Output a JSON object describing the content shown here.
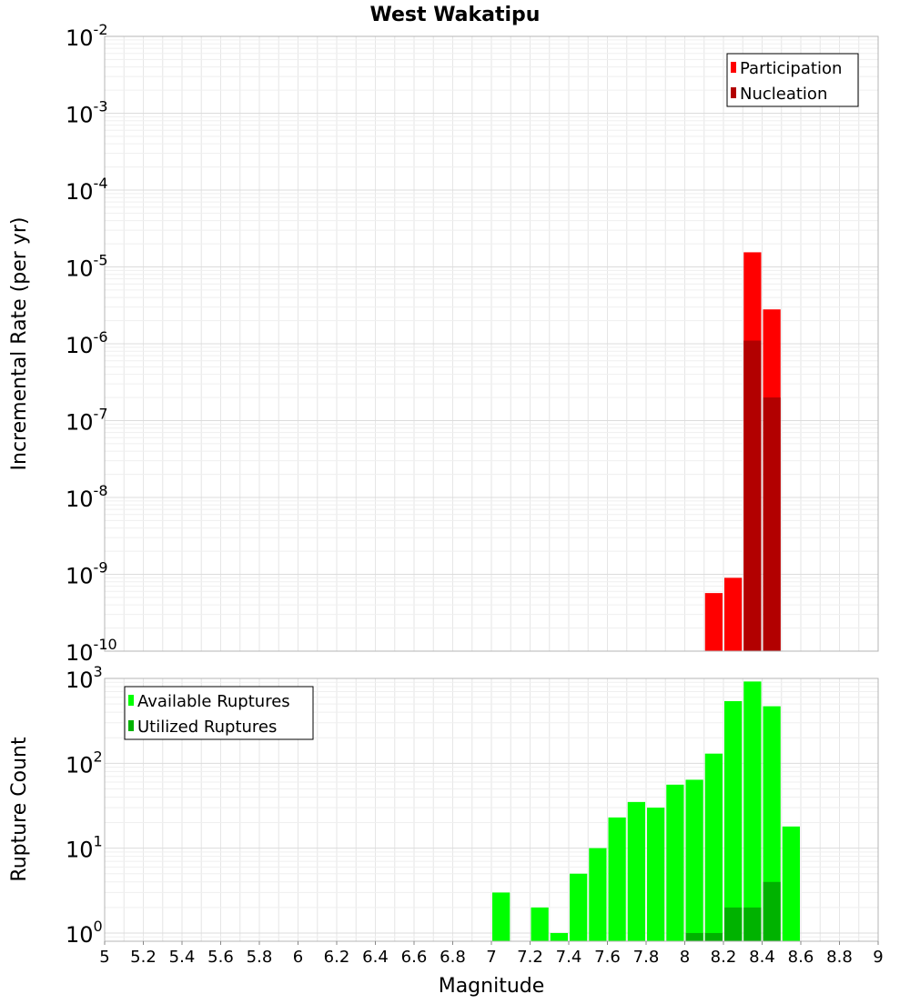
{
  "title": "West Wakatipu",
  "colors": {
    "participation": "#ff0000",
    "nucleation": "#b20000",
    "available": "#00ff00",
    "utilized": "#00b200",
    "grid": "#e6e6e6",
    "frame": "#b4b4b4"
  },
  "chart_data": [
    {
      "type": "bar",
      "ylabel": "Incremental Rate (per yr)",
      "yscale": "log",
      "ylim": [
        1e-10,
        0.01
      ],
      "yticks": [
        {
          "base": "10",
          "exp": "-10"
        },
        {
          "base": "10",
          "exp": "-9"
        },
        {
          "base": "10",
          "exp": "-8"
        },
        {
          "base": "10",
          "exp": "-7"
        },
        {
          "base": "10",
          "exp": "-6"
        },
        {
          "base": "10",
          "exp": "-5"
        },
        {
          "base": "10",
          "exp": "-4"
        },
        {
          "base": "10",
          "exp": "-3"
        },
        {
          "base": "10",
          "exp": "-2"
        }
      ],
      "legend": "top-right",
      "series": [
        {
          "name": "Participation",
          "color_key": "participation",
          "x": [
            8.15,
            8.25,
            8.35,
            8.45
          ],
          "values": [
            5.7e-10,
            9e-10,
            1.55e-05,
            2.8e-06
          ]
        },
        {
          "name": "Nucleation",
          "color_key": "nucleation",
          "x": [
            8.35,
            8.45
          ],
          "values": [
            1.1e-06,
            2e-07
          ]
        }
      ]
    },
    {
      "type": "bar",
      "xlabel": "Magnitude",
      "ylabel": "Rupture Count",
      "xlim": [
        5,
        9
      ],
      "xticks": [
        "5",
        "5.2",
        "5.4",
        "5.6",
        "5.8",
        "6",
        "6.2",
        "6.4",
        "6.6",
        "6.8",
        "7",
        "7.2",
        "7.4",
        "7.6",
        "7.8",
        "8",
        "8.2",
        "8.4",
        "8.6",
        "8.8",
        "9"
      ],
      "yscale": "log",
      "ylim": [
        0.8,
        1000
      ],
      "yticks": [
        {
          "base": "10",
          "exp": "0"
        },
        {
          "base": "10",
          "exp": "1"
        },
        {
          "base": "10",
          "exp": "2"
        },
        {
          "base": "10",
          "exp": "3"
        }
      ],
      "legend": "top-left",
      "series": [
        {
          "name": "Available Ruptures",
          "color_key": "available",
          "x": [
            7.05,
            7.25,
            7.35,
            7.45,
            7.55,
            7.65,
            7.75,
            7.85,
            7.95,
            8.05,
            8.15,
            8.25,
            8.35,
            8.45,
            8.55
          ],
          "values": [
            3,
            2,
            1,
            5,
            10,
            23,
            35,
            30,
            56,
            64,
            130,
            540,
            920,
            470,
            18
          ]
        },
        {
          "name": "Utilized Ruptures",
          "color_key": "utilized",
          "x": [
            8.05,
            8.15,
            8.25,
            8.35,
            8.45
          ],
          "values": [
            1,
            1,
            2,
            2,
            4
          ]
        }
      ]
    }
  ]
}
